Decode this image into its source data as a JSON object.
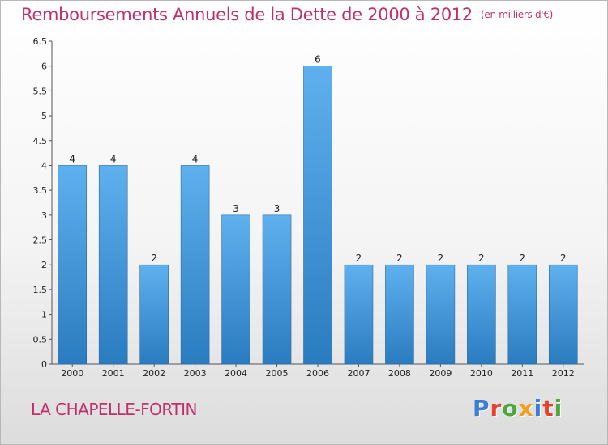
{
  "title": "Remboursements Annuels de la Dette de 2000 à 2012",
  "subtitle": "(en milliers d'€)",
  "commune": "LA CHAPELLE-FORTIN",
  "logo": {
    "letters": [
      "P",
      "r",
      "o",
      "x",
      "i",
      "t",
      "i"
    ],
    "colors": [
      "#3a7fd5",
      "#e8402e",
      "#4aa83c",
      "#f0a020",
      "#3a7fd5",
      "#e8402e",
      "#4aa83c"
    ]
  },
  "colors": {
    "bar_light": "#5fb0ee",
    "bar_dark": "#2a7cc0",
    "title": "#c0306a"
  },
  "chart_data": {
    "type": "bar",
    "categories": [
      "2000",
      "2001",
      "2002",
      "2003",
      "2004",
      "2005",
      "2006",
      "2007",
      "2008",
      "2009",
      "2010",
      "2011",
      "2012"
    ],
    "values": [
      4,
      4,
      2,
      4,
      3,
      3,
      6,
      2,
      2,
      2,
      2,
      2,
      2
    ],
    "data_labels": [
      "4",
      "4",
      "2",
      "4",
      "3",
      "3",
      "6",
      "2",
      "2",
      "2",
      "2",
      "2",
      "2"
    ],
    "ylim": [
      0,
      6.5
    ],
    "yticks": [
      0,
      0.5,
      1,
      1.5,
      2,
      2.5,
      3,
      3.5,
      4,
      4.5,
      5,
      5.5,
      6,
      6.5
    ],
    "ytick_labels": [
      "0",
      "0.5",
      "1",
      "1.5",
      "2",
      "2.5",
      "3",
      "3.5",
      "4",
      "4.5",
      "5",
      "5.5",
      "6",
      "6.5"
    ],
    "title": "Remboursements Annuels de la Dette de 2000 à 2012",
    "xlabel": "",
    "ylabel": "",
    "grid": false,
    "legend": "none"
  }
}
